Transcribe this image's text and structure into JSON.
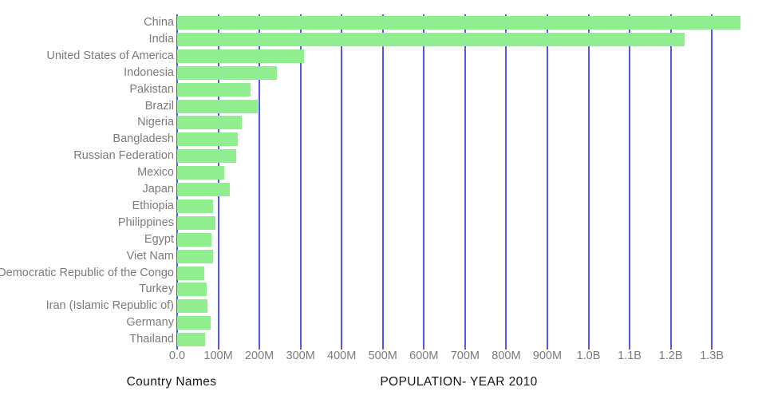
{
  "chart_data": {
    "type": "bar",
    "orientation": "horizontal",
    "title": "",
    "xlabel": "POPULATION- YEAR 2010",
    "ylabel": "Country Names",
    "unit": "people",
    "values_unit": "millions",
    "categories": [
      "China",
      "India",
      "United States of America",
      "Indonesia",
      "Pakistan",
      "Brazil",
      "Nigeria",
      "Bangladesh",
      "Russian Federation",
      "Mexico",
      "Japan",
      "Ethiopia",
      "Philippines",
      "Egypt",
      "Viet Nam",
      "Democratic Republic of the Congo",
      "Turkey",
      "Iran (Islamic Republic of)",
      "Germany",
      "Thailand"
    ],
    "values": [
      1369,
      1234,
      309,
      242,
      179,
      196,
      158,
      148,
      143,
      114,
      128,
      88,
      94,
      83,
      88,
      65,
      72,
      74,
      81,
      67
    ],
    "x_ticks": [
      "0.0",
      "100M",
      "200M",
      "300M",
      "400M",
      "500M",
      "600M",
      "700M",
      "800M",
      "900M",
      "1.0B",
      "1.1B",
      "1.2B",
      "1.3B"
    ],
    "x_tick_values": [
      0,
      100,
      200,
      300,
      400,
      500,
      600,
      700,
      800,
      900,
      1000,
      1100,
      1200,
      1300
    ],
    "xlim": [
      0,
      1383
    ],
    "grid": "vertical",
    "legend": "none",
    "colors": {
      "bar": "#90EE90",
      "gridline": "#5456F2",
      "tick_label": "#7B7B7B",
      "axis_title": "#161616",
      "background": "#FFFFFF"
    }
  }
}
